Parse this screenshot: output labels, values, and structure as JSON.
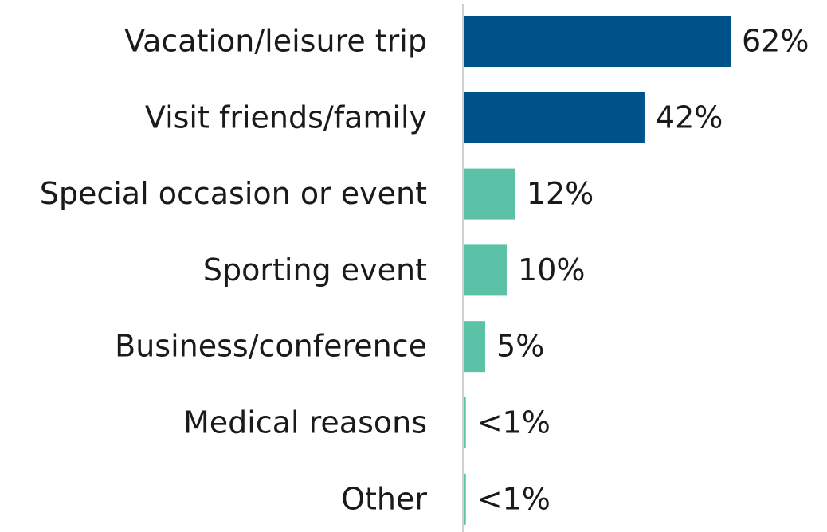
{
  "chart_data": {
    "type": "bar",
    "orientation": "horizontal",
    "categories": [
      "Vacation/leisure trip",
      "Visit friends/family",
      "Special occasion or event",
      "Sporting event",
      "Business/conference",
      "Medical reasons",
      "Other"
    ],
    "values": [
      62,
      42,
      12,
      10,
      5,
      0.5,
      0.5
    ],
    "value_labels": [
      "62%",
      "42%",
      "12%",
      "10%",
      "5%",
      "<1%",
      "<1%"
    ],
    "colors": [
      "#00528a",
      "#00528a",
      "#5bc2a7",
      "#5bc2a7",
      "#5bc2a7",
      "#5bc2a7",
      "#5bc2a7"
    ],
    "xlim": [
      0,
      62
    ]
  }
}
